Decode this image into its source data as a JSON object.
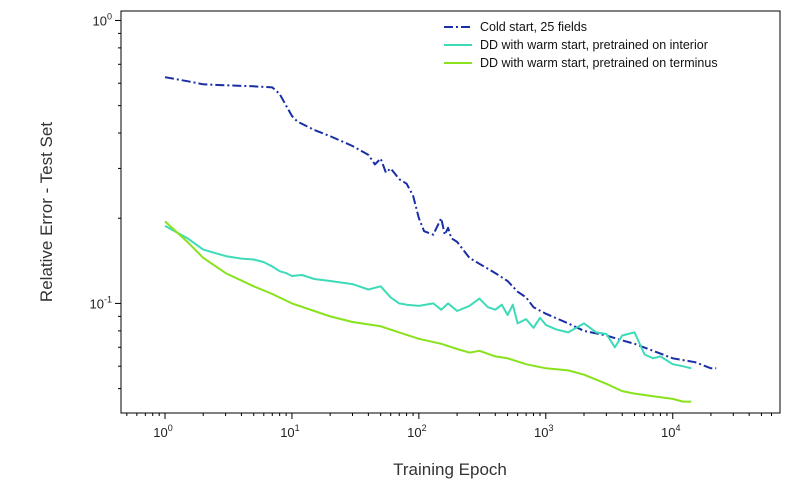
{
  "chart_data": {
    "type": "line",
    "title": "",
    "xlabel": "Training Epoch",
    "ylabel": "Relative Error - Test Set",
    "xscale": "log",
    "yscale": "log",
    "xlim": [
      0.45,
      70000
    ],
    "ylim": [
      0.041,
      1.08
    ],
    "x_ticks": [
      {
        "value": 1,
        "base": "10",
        "exp": "0"
      },
      {
        "value": 10,
        "base": "10",
        "exp": "1"
      },
      {
        "value": 100,
        "base": "10",
        "exp": "2"
      },
      {
        "value": 1000,
        "base": "10",
        "exp": "3"
      },
      {
        "value": 10000,
        "base": "10",
        "exp": "4"
      }
    ],
    "y_ticks": [
      {
        "value": 1,
        "base": "10",
        "exp": "0"
      },
      {
        "value": 0.1,
        "base": "10",
        "exp": "-1"
      }
    ],
    "legend_position": "top-right",
    "series": [
      {
        "name": "Cold start, 25 fields",
        "color": "#1a2ea6",
        "style": "dashdot",
        "x": [
          1,
          1.5,
          2,
          3,
          5,
          7,
          8,
          9,
          10,
          11,
          15,
          20,
          30,
          40,
          45,
          50,
          55,
          60,
          70,
          80,
          90,
          100,
          110,
          130,
          150,
          160,
          170,
          180,
          200,
          250,
          300,
          400,
          500,
          600,
          700,
          800,
          1000,
          1500,
          2000,
          3000,
          4000,
          5000,
          7000,
          10000,
          15000,
          20000,
          22000
        ],
        "values": [
          0.63,
          0.61,
          0.595,
          0.59,
          0.585,
          0.58,
          0.55,
          0.5,
          0.46,
          0.44,
          0.41,
          0.39,
          0.36,
          0.335,
          0.31,
          0.325,
          0.29,
          0.3,
          0.275,
          0.265,
          0.24,
          0.2,
          0.18,
          0.175,
          0.2,
          0.175,
          0.185,
          0.17,
          0.165,
          0.145,
          0.138,
          0.128,
          0.12,
          0.11,
          0.105,
          0.097,
          0.092,
          0.085,
          0.08,
          0.077,
          0.074,
          0.072,
          0.068,
          0.064,
          0.062,
          0.059,
          0.059
        ]
      },
      {
        "name": "DD with warm start, pretrained on interior",
        "color": "#3ddbb8",
        "style": "solid",
        "x": [
          1,
          1.5,
          2,
          3,
          4,
          5,
          6,
          7,
          8,
          9,
          10,
          12,
          15,
          20,
          30,
          40,
          50,
          60,
          70,
          80,
          100,
          130,
          150,
          170,
          200,
          250,
          300,
          350,
          400,
          450,
          500,
          550,
          600,
          700,
          800,
          900,
          1000,
          1200,
          1500,
          2000,
          2500,
          3000,
          3500,
          4000,
          5000,
          6000,
          7000,
          8000,
          10000,
          12000,
          14000
        ],
        "values": [
          0.188,
          0.17,
          0.155,
          0.147,
          0.144,
          0.143,
          0.14,
          0.135,
          0.13,
          0.128,
          0.125,
          0.126,
          0.122,
          0.12,
          0.117,
          0.112,
          0.115,
          0.105,
          0.1,
          0.099,
          0.098,
          0.1,
          0.095,
          0.1,
          0.094,
          0.098,
          0.104,
          0.097,
          0.095,
          0.099,
          0.091,
          0.099,
          0.085,
          0.088,
          0.082,
          0.089,
          0.084,
          0.081,
          0.079,
          0.085,
          0.079,
          0.078,
          0.07,
          0.077,
          0.079,
          0.066,
          0.064,
          0.065,
          0.061,
          0.06,
          0.059
        ]
      },
      {
        "name": "DD with warm start, pretrained on terminus",
        "color": "#88e21c",
        "style": "solid",
        "x": [
          1,
          1.5,
          2,
          3,
          5,
          7,
          10,
          15,
          20,
          30,
          50,
          70,
          100,
          150,
          200,
          250,
          300,
          400,
          500,
          700,
          1000,
          1500,
          2000,
          3000,
          4000,
          5000,
          7000,
          10000,
          12000,
          14000
        ],
        "values": [
          0.195,
          0.165,
          0.145,
          0.128,
          0.115,
          0.108,
          0.1,
          0.094,
          0.09,
          0.086,
          0.083,
          0.079,
          0.075,
          0.072,
          0.069,
          0.067,
          0.068,
          0.065,
          0.064,
          0.061,
          0.059,
          0.058,
          0.056,
          0.052,
          0.049,
          0.048,
          0.047,
          0.046,
          0.045,
          0.045
        ]
      }
    ]
  }
}
